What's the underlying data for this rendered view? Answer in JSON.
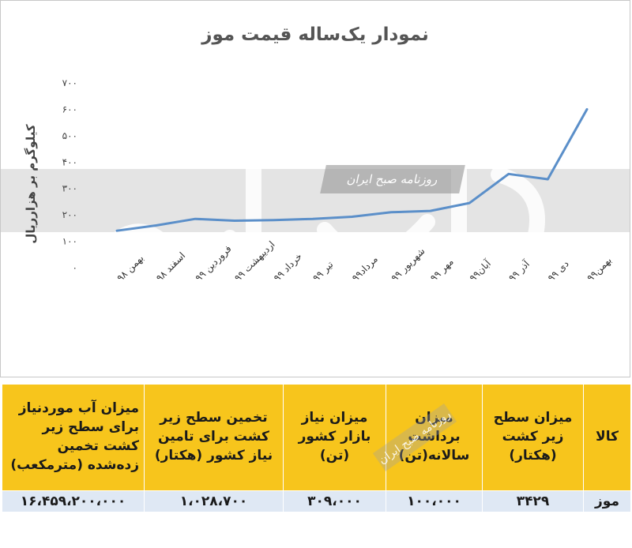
{
  "chart_data": {
    "type": "line",
    "title": "نمودار یک‌ساله قیمت موز",
    "ylabel": "کیلوگرم بر هزارریال",
    "xlabel": "",
    "ylim": [
      0,
      700
    ],
    "yticks": [
      "۰",
      "۱۰۰",
      "۲۰۰",
      "۳۰۰",
      "۴۰۰",
      "۵۰۰",
      "۶۰۰",
      "۷۰۰"
    ],
    "categories": [
      "بهمن ۹۸",
      "اسفند ۹۸",
      "فروردین ۹۹",
      "اردیبهشت ۹۹",
      "خرداد ۹۹",
      "تیر ۹۹",
      "مرداد۹۹",
      "شهریور ۹۹",
      "مهر ۹۹",
      "آبان۹۹",
      "آذر ۹۹",
      "دی ۹۹",
      "بهمن۹۹"
    ],
    "series": [
      {
        "values": [
          140,
          160,
          185,
          178,
          180,
          185,
          193,
          210,
          215,
          245,
          355,
          335,
          600
        ]
      }
    ],
    "line_color": "#5b8fc9",
    "grid": false,
    "legend": "none"
  },
  "watermark": {
    "newspaper": "روزنامه صبح ایران"
  },
  "table": {
    "headers": [
      "کالا",
      "میزان سطح زیر کشت (هکتار)",
      "میزان برداشت سالانه(تن)",
      "میزان نیاز بازار کشور (تن)",
      "تخمین سطح زیر کشت برای تامین نیاز کشور (هکتار)",
      "میزان آب موردنیاز برای سطح زیر کشت تخمین زده‌شده (مترمکعب)"
    ],
    "row": [
      "موز",
      "۳۴۲۹",
      "۱۰۰،۰۰۰",
      "۳۰۹،۰۰۰",
      "۱،۰۲۸،۷۰۰",
      "۱۶،۴۵۹،۲۰۰،۰۰۰"
    ],
    "header_color": "#f7c51c",
    "row_color": "#dfe8f4"
  }
}
